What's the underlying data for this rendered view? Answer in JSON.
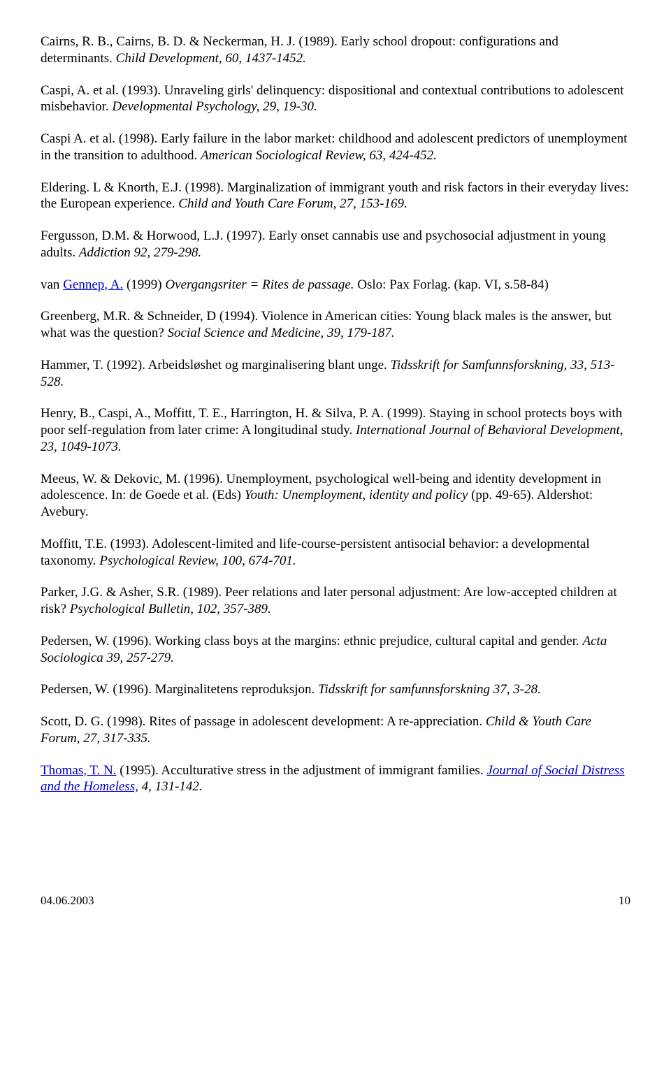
{
  "refs": {
    "r1a": "Cairns, R. B., Cairns, B. D. & Neckerman, H. J. (1989). Early school dropout: configurations and determinants. ",
    "r1b": "Child Development, 60, 1437-1452.",
    "r2a": "Caspi, A. et al. (1993). Unraveling girls' delinquency: dispositional and contextual contributions to adolescent misbehavior. ",
    "r2b": "Developmental Psychology, 29, 19-30.",
    "r3a": "Caspi A. et al. (1998). Early failure in the labor market: childhood and adolescent predictors of unemployment in the transition to adulthood. ",
    "r3b": "American Sociological Review, 63, 424-452.",
    "r4a": "Eldering. L & Knorth, E.J. (1998). Marginalization of immigrant youth and risk factors in their everyday lives: the European experience. ",
    "r4b": "Child and Youth Care Forum, 27, 153-169.",
    "r5a": "Fergusson, D.M. & Horwood, L.J. (1997). Early onset cannabis use and psychosocial adjustment in young adults. ",
    "r5b": "Addiction 92, 279-298.",
    "r6a": "van ",
    "r6link": "Gennep, A.",
    "r6b": " (1999) ",
    "r6c": "Overgangsriter = Rites de passage.",
    "r6d": "  Oslo: Pax Forlag. (kap. VI, s.58-84)",
    "r7a": "Greenberg, M.R. & Schneider, D (1994). Violence in American cities: Young black males is the answer, but what was the question? ",
    "r7b": "Social Science and Medicine, 39, 179-187.",
    "r8a": "Hammer, T. (1992). Arbeidsløshet og marginalisering blant unge. ",
    "r8b": "Tidsskrift for Samfunnsforskning, 33, 513-528.",
    "r9a": "Henry, B., Caspi, A., Moffitt, T. E., Harrington, H. & Silva, P. A. (1999). Staying in school protects boys with poor self-regulation from later crime: A longitudinal study. ",
    "r9b": "International Journal of Behavioral Development, 23, 1049-1073.",
    "r10a": "Meeus, W. & Dekovic, M. (1996). Unemployment, psychological well-being and identity development in adolescence. In: de Goede et al. (Eds) ",
    "r10b": "Youth: Unemployment, identity and policy",
    "r10c": " (pp. 49-65). Aldershot: Avebury.",
    "r11a": "Moffitt, T.E. (1993). Adolescent-limited and life-course-persistent antisocial behavior: a developmental taxonomy. ",
    "r11b": "Psychological Review, 100, 674-701.",
    "r12a": "Parker, J.G. & Asher, S.R. (1989). Peer relations and later personal adjustment: Are low-accepted children at risk? ",
    "r12b": "Psychological Bulletin, 102, 357-389.",
    "r13a": "Pedersen, W. (1996). Working class boys at the margins: ethnic prejudice, cultural capital and gender. ",
    "r13b": "Acta Sociologica 39, 257-279.",
    "r14a": "Pedersen, W. (1996). Marginalitetens reproduksjon. ",
    "r14b": "Tidsskrift for samfunnsforskning 37, 3-28.",
    "r15a": "Scott, D. G. (1998). Rites of passage in adolescent development: A re-appreciation. ",
    "r15b": "Child & Youth Care Forum, 27, 317-335.",
    "r16link1": "Thomas, T. N.",
    "r16a": " (1995). Acculturative stress in the adjustment of immigrant families. ",
    "r16link2": "Journal of Social Distress and the Homeless,",
    "r16b": " 4, 131-142."
  },
  "footer": {
    "date": "04.06.2003",
    "page": "10"
  }
}
